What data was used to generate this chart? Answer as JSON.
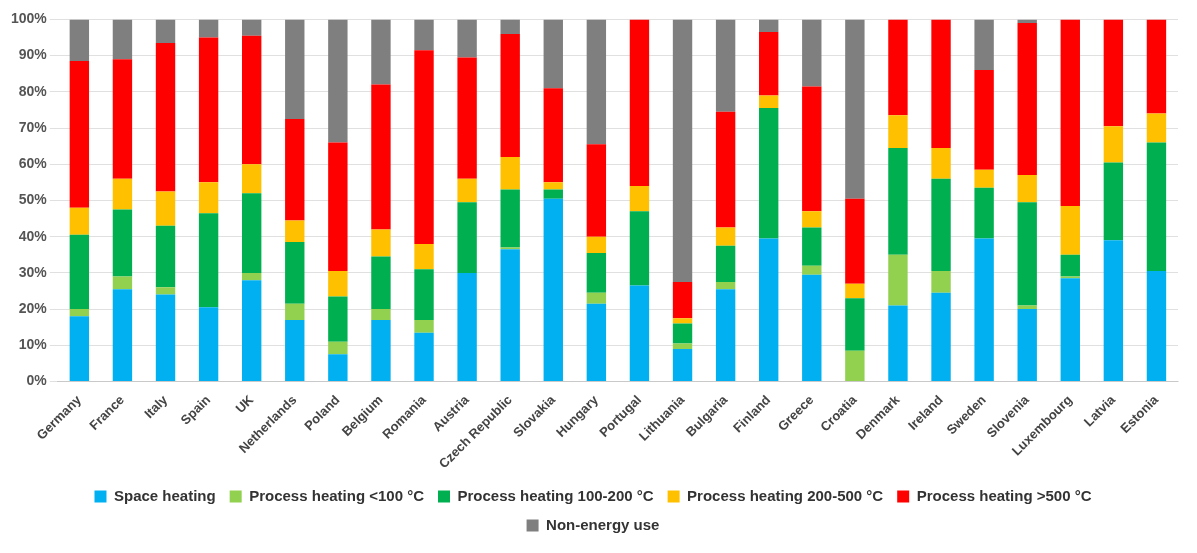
{
  "chart_data": {
    "type": "bar",
    "stacked": true,
    "categories": [
      "Germany",
      "France",
      "Italy",
      "Spain",
      "UK",
      "Netherlands",
      "Poland",
      "Belgium",
      "Romania",
      "Austria",
      "Czech Republic",
      "Slovakia",
      "Hungary",
      "Portugal",
      "Lithuania",
      "Bulgaria",
      "Finland",
      "Greece",
      "Croatia",
      "Denmark",
      "Ireland",
      "Sweden",
      "Slovenia",
      "Luxembourg",
      "Latvia",
      "Estonia"
    ],
    "series": [
      {
        "name": "Space heating",
        "color": "#00b0f0",
        "values": [
          18,
          25.5,
          24,
          20.5,
          28,
          17,
          7.5,
          17,
          13.5,
          30,
          36.5,
          50.5,
          21.5,
          26.5,
          9,
          25.5,
          39.5,
          29.5,
          0,
          21,
          24.5,
          39.5,
          20,
          28.5,
          39,
          30.5
        ]
      },
      {
        "name": "Process heating <100 °C",
        "color": "#92d050",
        "values": [
          2,
          3.5,
          2,
          0,
          2,
          4.5,
          3.5,
          3,
          3.5,
          0,
          0.5,
          0,
          3,
          0,
          1.5,
          2,
          0,
          2.5,
          8.5,
          14,
          6,
          0,
          1,
          0.5,
          0,
          0
        ]
      },
      {
        "name": "Process heating 100-200 °C",
        "color": "#00b050",
        "values": [
          20.5,
          18.5,
          17,
          26,
          22,
          17,
          12.5,
          14.5,
          14,
          19.5,
          16,
          2.5,
          11,
          20.5,
          5.5,
          10,
          36,
          10.5,
          14.5,
          29.5,
          25.5,
          14,
          28.5,
          6,
          21.5,
          35.5
        ]
      },
      {
        "name": "Process heating 200-500 °C",
        "color": "#ffc000",
        "values": [
          7.5,
          8.5,
          9.5,
          8.5,
          8,
          6,
          7,
          7.5,
          7,
          6.5,
          9,
          2,
          4.5,
          7,
          1.5,
          5,
          3.5,
          4.5,
          4,
          9,
          8.5,
          5,
          7.5,
          13.5,
          10,
          8
        ]
      },
      {
        "name": "Process heating >500 °C",
        "color": "#ff0000",
        "values": [
          40.5,
          33,
          41,
          40,
          35.5,
          28,
          35.5,
          40,
          53.5,
          33.5,
          34,
          26,
          25.5,
          46,
          10,
          32,
          17.5,
          34.5,
          23.5,
          26.5,
          35.5,
          27.5,
          42,
          51.5,
          29.5,
          26
        ]
      },
      {
        "name": "Non-energy use",
        "color": "#7f7f7f",
        "values": [
          11.5,
          11,
          6.5,
          5,
          4.5,
          27.5,
          34,
          18,
          8.5,
          10.5,
          4,
          19,
          34.5,
          0,
          72.5,
          25.5,
          3.5,
          18.5,
          49.5,
          0,
          0,
          14,
          1,
          0,
          0,
          0
        ]
      }
    ],
    "ylim": [
      0,
      100
    ],
    "yticks": [
      {
        "value": 0,
        "label": "0%"
      },
      {
        "value": 10,
        "label": "10%"
      },
      {
        "value": 20,
        "label": "20%"
      },
      {
        "value": 30,
        "label": "30%"
      },
      {
        "value": 40,
        "label": "40%"
      },
      {
        "value": 50,
        "label": "50%"
      },
      {
        "value": 60,
        "label": "60%"
      },
      {
        "value": 70,
        "label": "70%"
      },
      {
        "value": 80,
        "label": "80%"
      },
      {
        "value": 90,
        "label": "90%"
      },
      {
        "value": 100,
        "label": "100%"
      }
    ],
    "grid": "y",
    "legend": "bottom"
  }
}
